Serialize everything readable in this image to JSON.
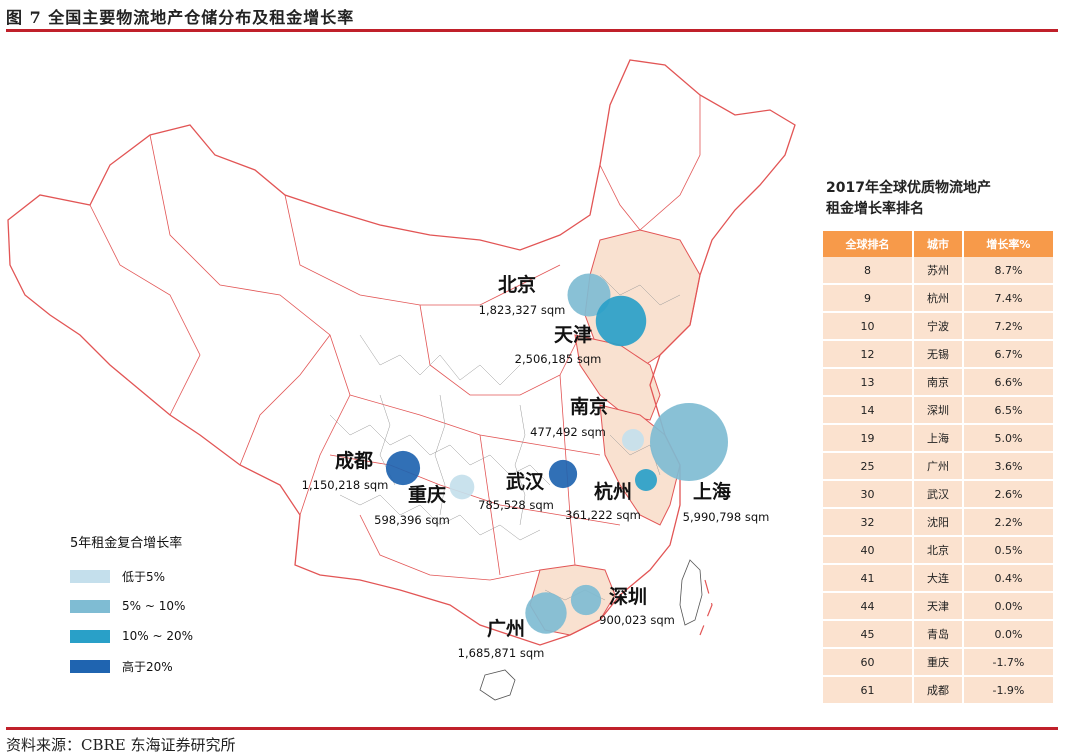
{
  "figure_title": "图 7  全国主要物流地产仓储分布及租金增长率",
  "source": "资料来源：CBRE  东海证券研究所",
  "chart_data": [
    {
      "type": "bubble-map",
      "title": "",
      "cities": [
        {
          "name": "北京",
          "area": "1,823,327 sqm",
          "area_sqm": 1823327,
          "growth_band": "5%~10%"
        },
        {
          "name": "天津",
          "area": "2,506,185 sqm",
          "area_sqm": 2506185,
          "growth_band": "10%~20%"
        },
        {
          "name": "南京",
          "area": "477,492 sqm",
          "area_sqm": 477492,
          "growth_band": "低于5%"
        },
        {
          "name": "上海",
          "area": "5,990,798 sqm",
          "area_sqm": 5990798,
          "growth_band": "5%~10%"
        },
        {
          "name": "杭州",
          "area": "361,222 sqm",
          "area_sqm": 361222,
          "growth_band": "10%~20%"
        },
        {
          "name": "武汉",
          "area": "785,528 sqm",
          "area_sqm": 785528,
          "growth_band": "高于20%"
        },
        {
          "name": "成都",
          "area": "1,150,218 sqm",
          "area_sqm": 1150218,
          "growth_band": "高于20%"
        },
        {
          "name": "重庆",
          "area": "598,396 sqm",
          "area_sqm": 598396,
          "growth_band": "低于5%"
        },
        {
          "name": "深圳",
          "area": "900,023 sqm",
          "area_sqm": 900023,
          "growth_band": "5%~10%"
        },
        {
          "name": "广州",
          "area": "1,685,871 sqm",
          "area_sqm": 1685871,
          "growth_band": "5%~10%"
        }
      ],
      "legend": {
        "title": "5年租金复合增长率",
        "items": [
          {
            "label": "低于5%",
            "color": "#c4dfec"
          },
          {
            "label": "5% ~ 10%",
            "color": "#7fbcd3"
          },
          {
            "label": "10% ~ 20%",
            "color": "#29a0c8"
          },
          {
            "label": "高于20%",
            "color": "#1f64b0"
          }
        ]
      }
    },
    {
      "type": "table",
      "title": "2017年全球优质物流地产租金增长率排名",
      "title_lines": [
        "2017年全球优质物流地产",
        "租金增长率排名"
      ],
      "columns": [
        "全球排名",
        "城市",
        "增长率%"
      ],
      "rows": [
        [
          "8",
          "苏州",
          "8.7%"
        ],
        [
          "9",
          "杭州",
          "7.4%"
        ],
        [
          "10",
          "宁波",
          "7.2%"
        ],
        [
          "12",
          "无锡",
          "6.7%"
        ],
        [
          "13",
          "南京",
          "6.6%"
        ],
        [
          "14",
          "深圳",
          "6.5%"
        ],
        [
          "19",
          "上海",
          "5.0%"
        ],
        [
          "25",
          "广州",
          "3.6%"
        ],
        [
          "30",
          "武汉",
          "2.6%"
        ],
        [
          "32",
          "沈阳",
          "2.2%"
        ],
        [
          "40",
          "北京",
          "0.5%"
        ],
        [
          "41",
          "大连",
          "0.4%"
        ],
        [
          "44",
          "天津",
          "0.0%"
        ],
        [
          "45",
          "青岛",
          "0.0%"
        ],
        [
          "60",
          "重庆",
          "-1.7%"
        ],
        [
          "61",
          "成都",
          "-1.9%"
        ]
      ]
    }
  ],
  "colors": {
    "accent_rule": "#c0202a",
    "map_border": "#e25555",
    "province_fill": "#f9e1d0",
    "table_header": "#f79a4a",
    "table_cell": "#fbe2cf"
  }
}
